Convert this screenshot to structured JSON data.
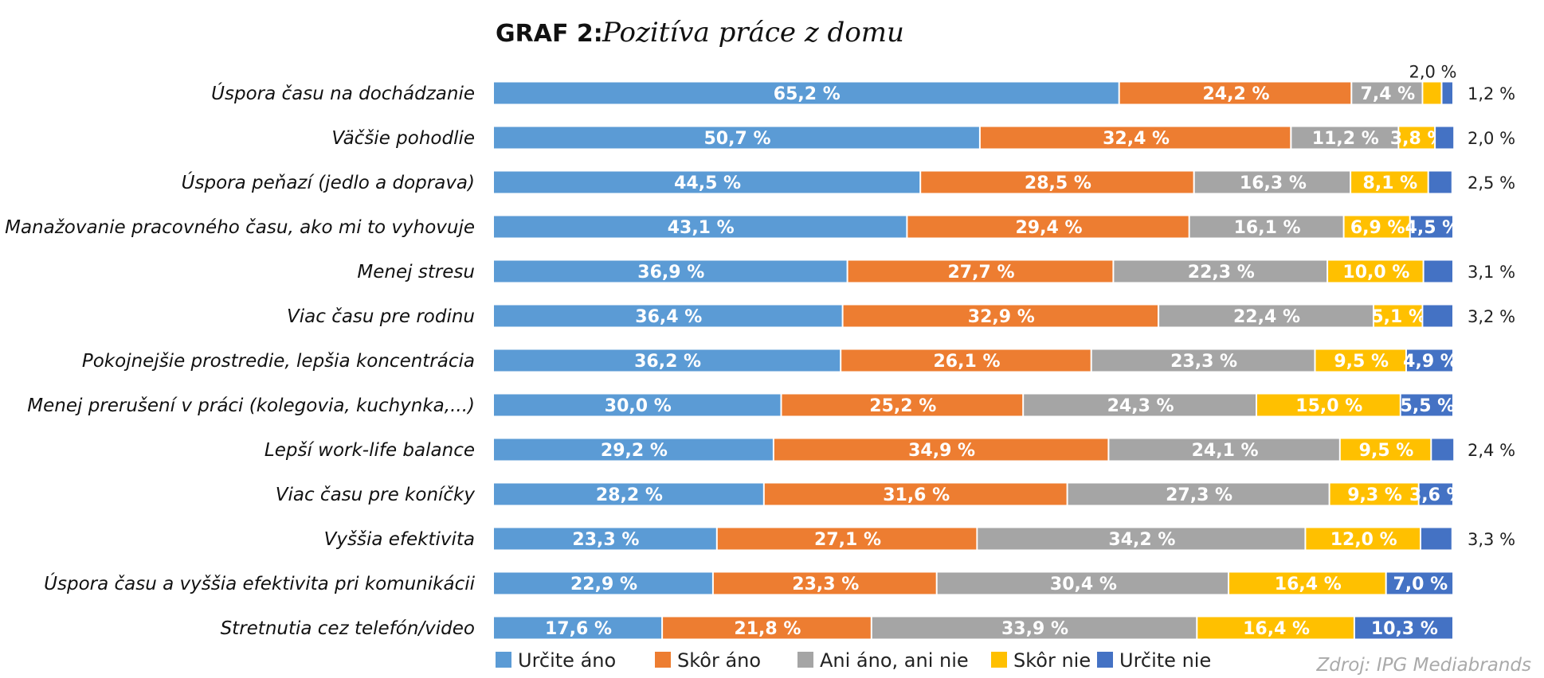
{
  "title_prefix": "GRAF 2:",
  "title": "Pozitíva práce z domu",
  "source": "Zdroj: IPG Mediabrands",
  "chart_data": {
    "type": "bar",
    "orientation": "horizontal",
    "stacked": true,
    "unit": "%",
    "xlim": [
      0,
      100
    ],
    "legend_position": "bottom",
    "grid": false,
    "categories": [
      "Úspora času na dochádzanie",
      "Väčšie pohodlie",
      "Úspora peňazí (jedlo a doprava)",
      "Manažovanie pracovného času, ako mi to vyhovuje",
      "Menej stresu",
      "Viac času pre rodinu",
      "Pokojnejšie prostredie, lepšia koncentrácia",
      "Menej prerušení v práci (kolegovia, kuchynka,...)",
      "Lepší work-life balance",
      "Viac času pre koníčky",
      "Vyššia efektivita",
      "Úspora času a vyššia efektivita pri komunikácii",
      "Stretnutia cez telefón/video"
    ],
    "series": [
      {
        "name": "Určite áno",
        "color": "#5b9bd5",
        "values": [
          65.2,
          50.7,
          44.5,
          43.1,
          36.9,
          36.4,
          36.2,
          30.0,
          29.2,
          28.2,
          23.3,
          22.9,
          17.6
        ],
        "labels": [
          "65,2 %",
          "50,7 %",
          "44,5 %",
          "43,1 %",
          "36,9 %",
          "36,4 %",
          "36,2 %",
          "30,0 %",
          "29,2 %",
          "28,2 %",
          "23,3 %",
          "22,9 %",
          "17,6 %"
        ]
      },
      {
        "name": "Skôr áno",
        "color": "#ed7d31",
        "values": [
          24.2,
          32.4,
          28.5,
          29.4,
          27.7,
          32.9,
          26.1,
          25.2,
          34.9,
          31.6,
          27.1,
          23.3,
          21.8
        ],
        "labels": [
          "24,2 %",
          "32,4 %",
          "28,5 %",
          "29,4 %",
          "27,7 %",
          "32,9 %",
          "26,1 %",
          "25,2 %",
          "34,9 %",
          "31,6 %",
          "27,1 %",
          "23,3 %",
          "21,8 %"
        ]
      },
      {
        "name": "Ani áno, ani nie",
        "color": "#a5a5a5",
        "values": [
          7.4,
          11.2,
          16.3,
          16.1,
          22.3,
          22.4,
          23.3,
          24.3,
          24.1,
          27.3,
          34.2,
          30.4,
          33.9
        ],
        "labels": [
          "7,4 %",
          "11,2 %",
          "16,3 %",
          "16,1 %",
          "22,3 %",
          "22,4 %",
          "23,3 %",
          "24,3 %",
          "24,1 %",
          "27,3 %",
          "34,2 %",
          "30,4 %",
          "33,9 %"
        ]
      },
      {
        "name": "Skôr nie",
        "color": "#ffc000",
        "values": [
          2.0,
          3.8,
          8.1,
          6.9,
          10.0,
          5.1,
          9.5,
          15.0,
          9.5,
          9.3,
          12.0,
          16.4,
          16.4
        ],
        "labels": [
          "2,0 %",
          "3,8 %",
          "8,1 %",
          "6,9 %",
          "10,0 %",
          "5,1 %",
          "9,5 %",
          "15,0 %",
          "9,5 %",
          "9,3 %",
          "12,0 %",
          "16,4 %",
          "16,4 %"
        ]
      },
      {
        "name": "Určite nie",
        "color": "#4472c4",
        "values": [
          1.2,
          2.0,
          2.5,
          4.5,
          3.1,
          3.2,
          4.9,
          5.5,
          2.4,
          3.6,
          3.3,
          7.0,
          10.3
        ],
        "labels": [
          "1,2 %",
          "2,0 %",
          "2,5 %",
          "4,5 %",
          "3,1 %",
          "3,2 %",
          "4,9 %",
          "5,5 %",
          "2,4 %",
          "3,6 %",
          "3,3 %",
          "7,0 %",
          "10,3 %"
        ]
      }
    ]
  }
}
